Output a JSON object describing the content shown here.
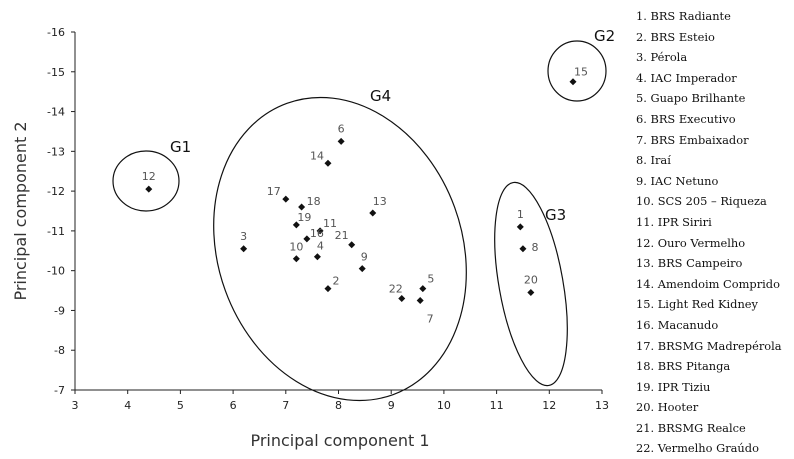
{
  "chart_data": {
    "type": "scatter",
    "xlabel": "Principal component 1",
    "ylabel": "Principal component 2",
    "xlim": [
      3,
      13
    ],
    "ylim": [
      -7,
      -16
    ],
    "xticks": [
      "3",
      "4",
      "5",
      "6",
      "7",
      "8",
      "9",
      "10",
      "11",
      "12",
      "13"
    ],
    "yticks": [
      "-16",
      "-15",
      "-14",
      "-13",
      "-12",
      "-11",
      "-10",
      "-9",
      "-8",
      "-7"
    ],
    "grid": false,
    "marker_color": "#111111",
    "points": [
      {
        "label": "1",
        "x": 11.45,
        "y": -11.1
      },
      {
        "label": "2",
        "x": 7.8,
        "y": -9.55
      },
      {
        "label": "3",
        "x": 6.2,
        "y": -10.55
      },
      {
        "label": "4",
        "x": 7.6,
        "y": -10.35
      },
      {
        "label": "5",
        "x": 9.6,
        "y": -9.55
      },
      {
        "label": "6",
        "x": 8.05,
        "y": -13.25
      },
      {
        "label": "7",
        "x": 9.55,
        "y": -9.25
      },
      {
        "label": "8",
        "x": 11.5,
        "y": -10.55
      },
      {
        "label": "9",
        "x": 8.45,
        "y": -10.05
      },
      {
        "label": "10",
        "x": 7.2,
        "y": -10.3
      },
      {
        "label": "11",
        "x": 7.65,
        "y": -11.0
      },
      {
        "label": "12",
        "x": 4.4,
        "y": -12.05
      },
      {
        "label": "13",
        "x": 8.65,
        "y": -11.45
      },
      {
        "label": "14",
        "x": 7.8,
        "y": -12.7
      },
      {
        "label": "15",
        "x": 12.45,
        "y": -14.75
      },
      {
        "label": "16",
        "x": 7.4,
        "y": -10.8
      },
      {
        "label": "17",
        "x": 7.0,
        "y": -11.8
      },
      {
        "label": "18",
        "x": 7.3,
        "y": -11.6
      },
      {
        "label": "19",
        "x": 7.2,
        "y": -11.15
      },
      {
        "label": "20",
        "x": 11.65,
        "y": -9.45
      },
      {
        "label": "21",
        "x": 8.25,
        "y": -10.65
      },
      {
        "label": "22",
        "x": 9.2,
        "y": -9.3
      }
    ],
    "groups": [
      "G1",
      "G2",
      "G3",
      "G4"
    ],
    "legend": [
      "1. BRS Radiante",
      "2. BRS Esteio",
      "3. Pérola",
      "4. IAC Imperador",
      "5. Guapo Brilhante",
      "6. BRS Executivo",
      "7. BRS Embaixador",
      "8. Iraí",
      "9. IAC Netuno",
      "10. SCS 205 – Riqueza",
      "11. IPR Siriri",
      "12. Ouro Vermelho",
      "13. BRS Campeiro",
      "14. Amendoim Comprido",
      "15. Light Red Kidney",
      "16. Macanudo",
      "17. BRSMG Madrepérola",
      "18. BRS Pitanga",
      "19. IPR Tiziu",
      "20. Hooter",
      "21. BRSMG Realce",
      "22. Vermelho Graúdo"
    ]
  }
}
